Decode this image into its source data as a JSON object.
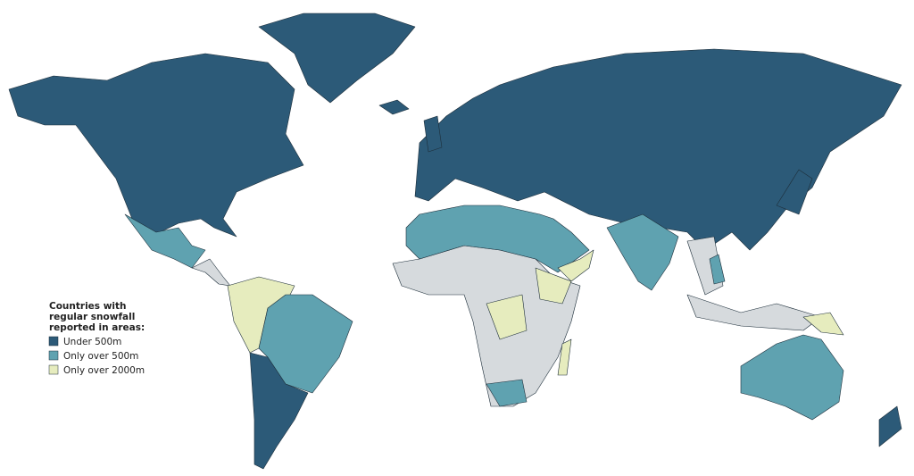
{
  "legend": {
    "title_lines": [
      "Countries with",
      "regular snowfall",
      "reported in areas:"
    ],
    "items": [
      {
        "label": "Under 500m",
        "color": "#2c5a78"
      },
      {
        "label": "Only over 500m",
        "color": "#5fa2b0"
      },
      {
        "label": "Only over 2000m",
        "color": "#e6ecbe"
      }
    ]
  }
}
